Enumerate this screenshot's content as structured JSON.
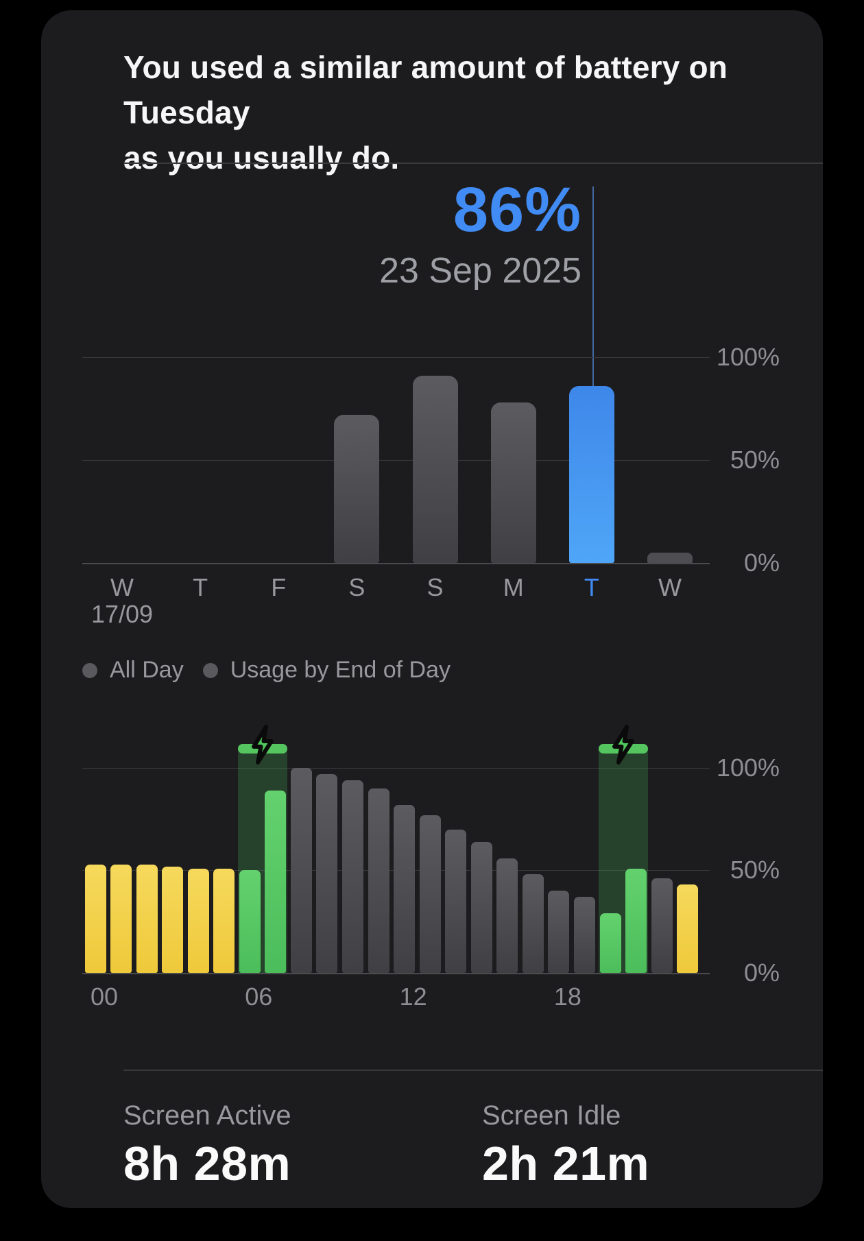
{
  "title": {
    "line1": "You used a similar amount of battery on Tuesday",
    "line2": "as you usually do."
  },
  "callout": {
    "value": "86%",
    "date": "23 Sep 2025"
  },
  "colors": {
    "accent_blue": "#418bf4",
    "bar_gray": "#505054",
    "bar_yellow": "#f2d14c",
    "bar_green": "#59c965",
    "charging_overlay": "#2c4a2c",
    "card_bg": "#1c1c1e",
    "text_gray": "#98989d"
  },
  "legend": {
    "items": [
      {
        "label": "All Day"
      },
      {
        "label": "Usage by End of Day"
      }
    ]
  },
  "stats": {
    "items": [
      {
        "label": "Screen Active",
        "value": "8h 28m"
      },
      {
        "label": "Screen Idle",
        "value": "2h 21m"
      }
    ]
  },
  "chart_data": [
    {
      "type": "bar",
      "name": "battery-usage-by-day",
      "categories": [
        "W",
        "T",
        "F",
        "S",
        "S",
        "M",
        "T",
        "W"
      ],
      "start_date_label": "17/09",
      "values": [
        0,
        0,
        0,
        72,
        91,
        78,
        86,
        5
      ],
      "highlight_index": 6,
      "highlight_value_label": "86%",
      "highlight_date_label": "23 Sep 2025",
      "y_tick_labels": [
        "100%",
        "50%",
        "0%"
      ],
      "ylim": [
        0,
        100
      ],
      "grid": true,
      "legend_position": "below"
    },
    {
      "type": "bar",
      "name": "battery-level-by-hour",
      "x_tick_labels": [
        "00",
        "06",
        "12",
        "18"
      ],
      "x_tick_hours": [
        0,
        6,
        12,
        18
      ],
      "values": [
        53,
        53,
        53,
        52,
        51,
        51,
        50,
        89,
        100,
        97,
        94,
        90,
        82,
        77,
        70,
        64,
        56,
        48,
        40,
        37,
        29,
        51,
        46,
        43
      ],
      "bar_colors": [
        "yellow",
        "yellow",
        "yellow",
        "yellow",
        "yellow",
        "yellow",
        "green",
        "green",
        "gray",
        "gray",
        "gray",
        "gray",
        "gray",
        "gray",
        "gray",
        "gray",
        "gray",
        "gray",
        "gray",
        "gray",
        "green",
        "green",
        "gray",
        "yellow"
      ],
      "charging_periods": [
        {
          "start_hour": 6,
          "end_hour": 8
        },
        {
          "start_hour": 20,
          "end_hour": 22
        }
      ],
      "y_tick_labels": [
        "100%",
        "50%",
        "0%"
      ],
      "ylim": [
        0,
        100
      ],
      "grid": true
    }
  ]
}
